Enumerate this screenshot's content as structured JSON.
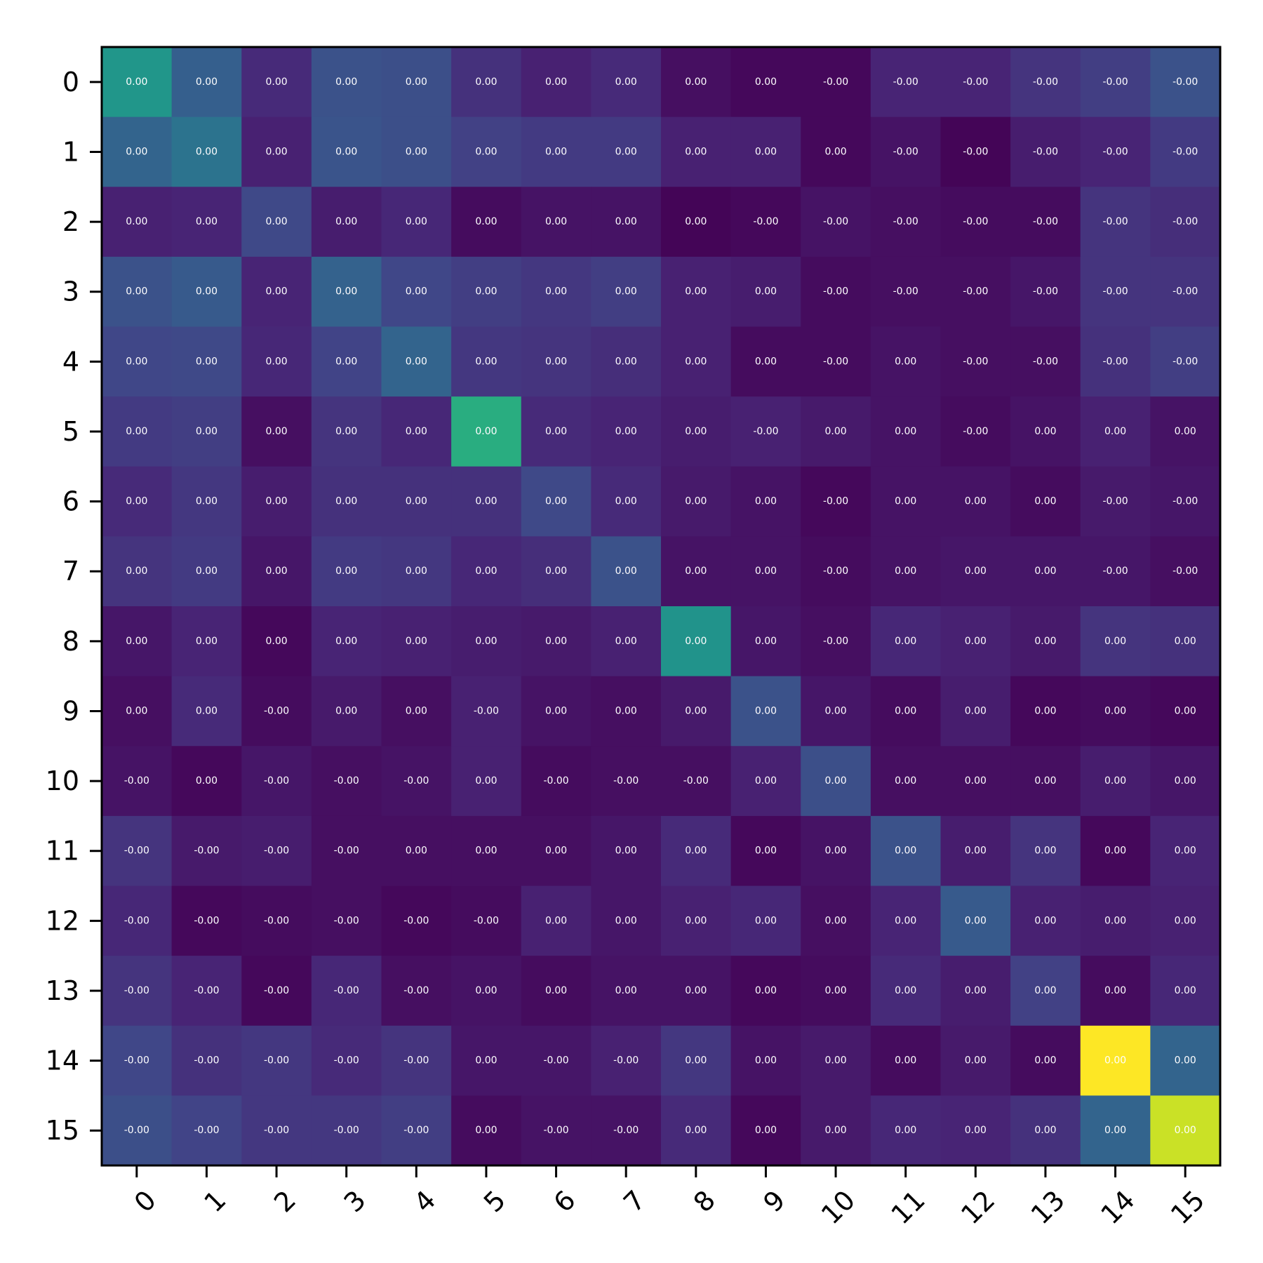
{
  "chart_data": {
    "type": "heatmap",
    "x_tick_labels": [
      "0",
      "1",
      "2",
      "3",
      "4",
      "5",
      "6",
      "7",
      "8",
      "9",
      "10",
      "11",
      "12",
      "13",
      "14",
      "15"
    ],
    "y_tick_labels": [
      "0",
      "1",
      "2",
      "3",
      "4",
      "5",
      "6",
      "7",
      "8",
      "9",
      "10",
      "11",
      "12",
      "13",
      "14",
      "15"
    ],
    "colormap": "viridis",
    "color_range": [
      0,
      1
    ],
    "color_intensity": [
      [
        0.52,
        0.3,
        0.12,
        0.25,
        0.24,
        0.14,
        0.09,
        0.12,
        0.04,
        0.02,
        0.02,
        0.1,
        0.1,
        0.15,
        0.18,
        0.25
      ],
      [
        0.32,
        0.38,
        0.09,
        0.26,
        0.24,
        0.19,
        0.17,
        0.17,
        0.09,
        0.09,
        0.02,
        0.05,
        0.01,
        0.08,
        0.1,
        0.17
      ],
      [
        0.09,
        0.1,
        0.22,
        0.08,
        0.11,
        0.03,
        0.05,
        0.05,
        0.01,
        0.02,
        0.05,
        0.04,
        0.03,
        0.03,
        0.15,
        0.13
      ],
      [
        0.25,
        0.28,
        0.1,
        0.31,
        0.21,
        0.18,
        0.16,
        0.18,
        0.09,
        0.08,
        0.03,
        0.04,
        0.04,
        0.06,
        0.15,
        0.15
      ],
      [
        0.21,
        0.22,
        0.11,
        0.2,
        0.32,
        0.16,
        0.15,
        0.13,
        0.09,
        0.03,
        0.03,
        0.05,
        0.04,
        0.04,
        0.14,
        0.18
      ],
      [
        0.17,
        0.18,
        0.04,
        0.15,
        0.11,
        0.62,
        0.12,
        0.1,
        0.08,
        0.09,
        0.07,
        0.05,
        0.03,
        0.05,
        0.09,
        0.05
      ],
      [
        0.12,
        0.16,
        0.08,
        0.14,
        0.14,
        0.14,
        0.22,
        0.12,
        0.07,
        0.05,
        0.02,
        0.05,
        0.05,
        0.03,
        0.07,
        0.06
      ],
      [
        0.15,
        0.17,
        0.06,
        0.17,
        0.16,
        0.11,
        0.13,
        0.25,
        0.05,
        0.05,
        0.03,
        0.05,
        0.06,
        0.06,
        0.06,
        0.04
      ],
      [
        0.06,
        0.1,
        0.02,
        0.1,
        0.09,
        0.08,
        0.07,
        0.09,
        0.51,
        0.06,
        0.04,
        0.11,
        0.09,
        0.07,
        0.15,
        0.14
      ],
      [
        0.04,
        0.12,
        0.03,
        0.07,
        0.04,
        0.09,
        0.05,
        0.04,
        0.07,
        0.25,
        0.06,
        0.03,
        0.08,
        0.02,
        0.03,
        0.02
      ],
      [
        0.05,
        0.02,
        0.06,
        0.04,
        0.05,
        0.09,
        0.03,
        0.04,
        0.04,
        0.09,
        0.24,
        0.04,
        0.04,
        0.04,
        0.08,
        0.06
      ],
      [
        0.15,
        0.07,
        0.08,
        0.04,
        0.04,
        0.04,
        0.04,
        0.06,
        0.12,
        0.02,
        0.05,
        0.25,
        0.08,
        0.15,
        0.02,
        0.1
      ],
      [
        0.11,
        0.02,
        0.03,
        0.04,
        0.02,
        0.03,
        0.09,
        0.06,
        0.09,
        0.11,
        0.04,
        0.1,
        0.28,
        0.09,
        0.08,
        0.09
      ],
      [
        0.15,
        0.1,
        0.02,
        0.11,
        0.04,
        0.05,
        0.03,
        0.05,
        0.05,
        0.02,
        0.03,
        0.12,
        0.08,
        0.19,
        0.03,
        0.11
      ],
      [
        0.21,
        0.14,
        0.16,
        0.12,
        0.15,
        0.06,
        0.06,
        0.09,
        0.16,
        0.05,
        0.07,
        0.03,
        0.07,
        0.03,
        1.0,
        0.32
      ],
      [
        0.24,
        0.2,
        0.16,
        0.16,
        0.18,
        0.03,
        0.05,
        0.05,
        0.12,
        0.02,
        0.07,
        0.11,
        0.1,
        0.14,
        0.32,
        0.92
      ]
    ],
    "cell_labels": [
      [
        "0.00",
        "0.00",
        "0.00",
        "0.00",
        "0.00",
        "0.00",
        "0.00",
        "0.00",
        "0.00",
        "0.00",
        "-0.00",
        "-0.00",
        "-0.00",
        "-0.00",
        "-0.00",
        "-0.00"
      ],
      [
        "0.00",
        "0.00",
        "0.00",
        "0.00",
        "0.00",
        "0.00",
        "0.00",
        "0.00",
        "0.00",
        "0.00",
        "0.00",
        "-0.00",
        "-0.00",
        "-0.00",
        "-0.00",
        "-0.00"
      ],
      [
        "0.00",
        "0.00",
        "0.00",
        "0.00",
        "0.00",
        "0.00",
        "0.00",
        "0.00",
        "0.00",
        "-0.00",
        "-0.00",
        "-0.00",
        "-0.00",
        "-0.00",
        "-0.00",
        "-0.00"
      ],
      [
        "0.00",
        "0.00",
        "0.00",
        "0.00",
        "0.00",
        "0.00",
        "0.00",
        "0.00",
        "0.00",
        "0.00",
        "-0.00",
        "-0.00",
        "-0.00",
        "-0.00",
        "-0.00",
        "-0.00"
      ],
      [
        "0.00",
        "0.00",
        "0.00",
        "0.00",
        "0.00",
        "0.00",
        "0.00",
        "0.00",
        "0.00",
        "0.00",
        "-0.00",
        "0.00",
        "-0.00",
        "-0.00",
        "-0.00",
        "-0.00"
      ],
      [
        "0.00",
        "0.00",
        "0.00",
        "0.00",
        "0.00",
        "0.00",
        "0.00",
        "0.00",
        "0.00",
        "-0.00",
        "0.00",
        "0.00",
        "-0.00",
        "0.00",
        "0.00",
        "0.00"
      ],
      [
        "0.00",
        "0.00",
        "0.00",
        "0.00",
        "0.00",
        "0.00",
        "0.00",
        "0.00",
        "0.00",
        "0.00",
        "-0.00",
        "0.00",
        "0.00",
        "0.00",
        "-0.00",
        "-0.00"
      ],
      [
        "0.00",
        "0.00",
        "0.00",
        "0.00",
        "0.00",
        "0.00",
        "0.00",
        "0.00",
        "0.00",
        "0.00",
        "-0.00",
        "0.00",
        "0.00",
        "0.00",
        "-0.00",
        "-0.00"
      ],
      [
        "0.00",
        "0.00",
        "0.00",
        "0.00",
        "0.00",
        "0.00",
        "0.00",
        "0.00",
        "0.00",
        "0.00",
        "-0.00",
        "0.00",
        "0.00",
        "0.00",
        "0.00",
        "0.00"
      ],
      [
        "0.00",
        "0.00",
        "-0.00",
        "0.00",
        "0.00",
        "-0.00",
        "0.00",
        "0.00",
        "0.00",
        "0.00",
        "0.00",
        "0.00",
        "0.00",
        "0.00",
        "0.00",
        "0.00"
      ],
      [
        "-0.00",
        "0.00",
        "-0.00",
        "-0.00",
        "-0.00",
        "0.00",
        "-0.00",
        "-0.00",
        "-0.00",
        "0.00",
        "0.00",
        "0.00",
        "0.00",
        "0.00",
        "0.00",
        "0.00"
      ],
      [
        "-0.00",
        "-0.00",
        "-0.00",
        "-0.00",
        "0.00",
        "0.00",
        "0.00",
        "0.00",
        "0.00",
        "0.00",
        "0.00",
        "0.00",
        "0.00",
        "0.00",
        "0.00",
        "0.00"
      ],
      [
        "-0.00",
        "-0.00",
        "-0.00",
        "-0.00",
        "-0.00",
        "-0.00",
        "0.00",
        "0.00",
        "0.00",
        "0.00",
        "0.00",
        "0.00",
        "0.00",
        "0.00",
        "0.00",
        "0.00"
      ],
      [
        "-0.00",
        "-0.00",
        "-0.00",
        "-0.00",
        "-0.00",
        "0.00",
        "0.00",
        "0.00",
        "0.00",
        "0.00",
        "0.00",
        "0.00",
        "0.00",
        "0.00",
        "0.00",
        "0.00"
      ],
      [
        "-0.00",
        "-0.00",
        "-0.00",
        "-0.00",
        "-0.00",
        "0.00",
        "-0.00",
        "-0.00",
        "0.00",
        "0.00",
        "0.00",
        "0.00",
        "0.00",
        "0.00",
        "0.00",
        "0.00"
      ],
      [
        "-0.00",
        "-0.00",
        "-0.00",
        "-0.00",
        "-0.00",
        "0.00",
        "-0.00",
        "-0.00",
        "0.00",
        "0.00",
        "0.00",
        "0.00",
        "0.00",
        "0.00",
        "0.00",
        "0.00"
      ]
    ],
    "title": "",
    "xlabel": "",
    "ylabel": "",
    "grid": false,
    "legend": "none"
  }
}
